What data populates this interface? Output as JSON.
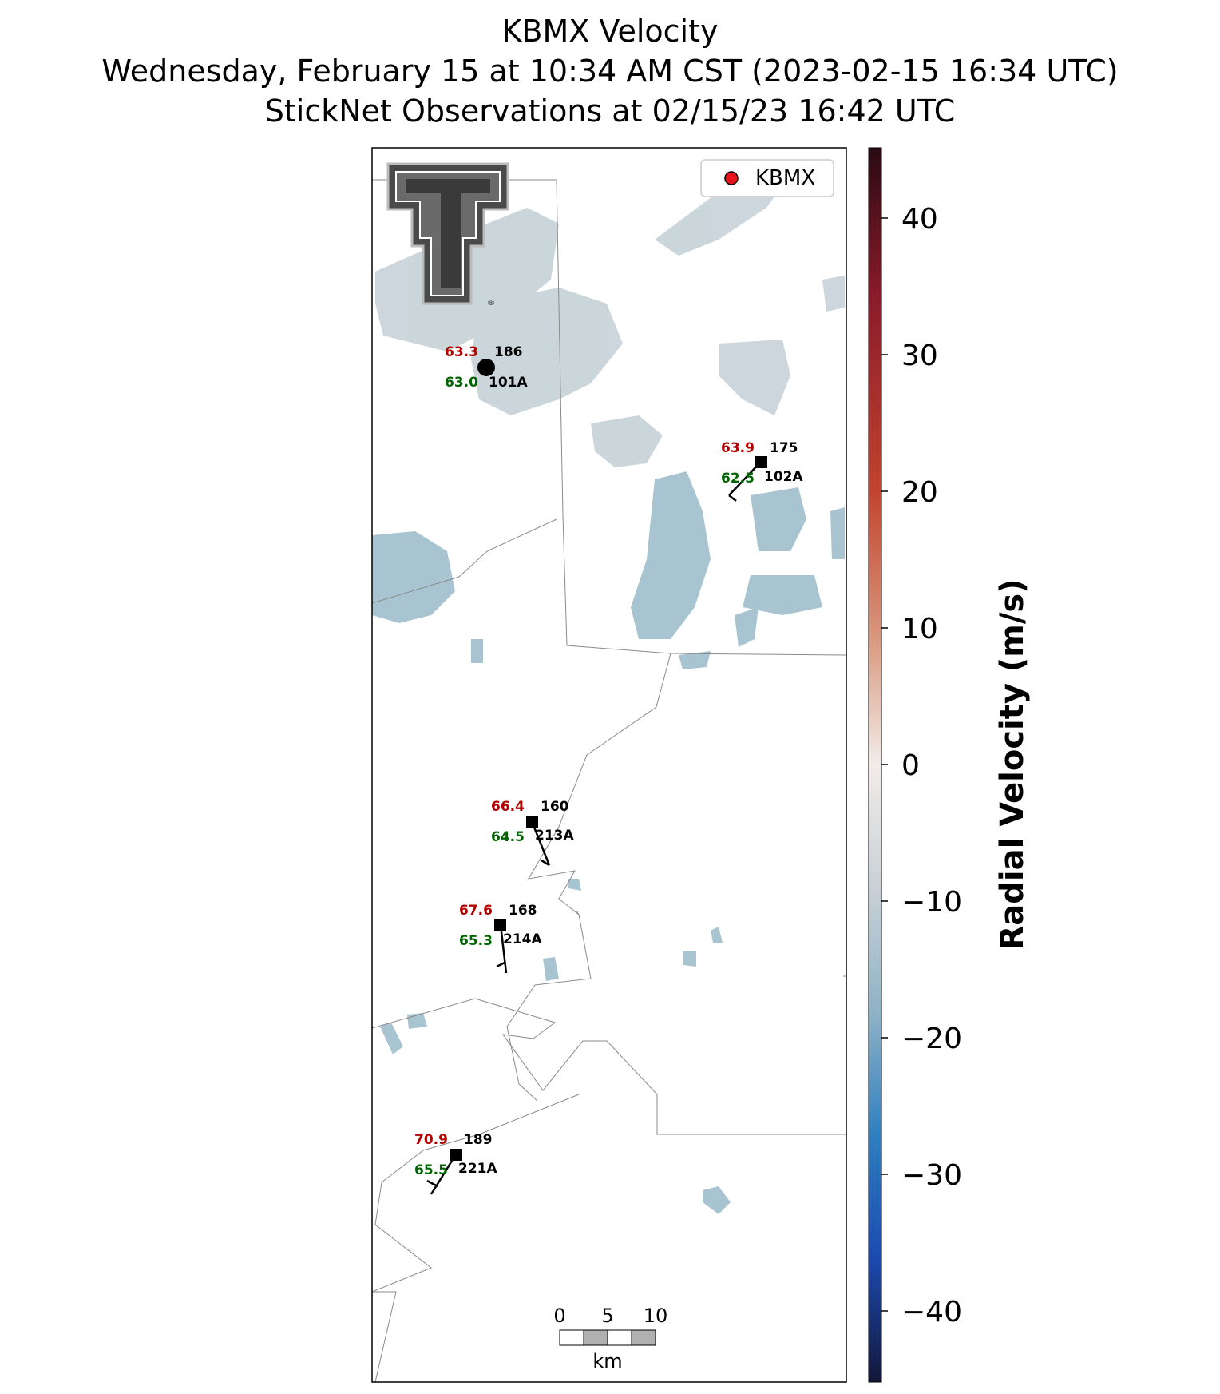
{
  "title": {
    "line1": "KBMX Velocity",
    "line2": "Wednesday, February 15 at 10:34 AM CST (2023-02-15 16:34 UTC)",
    "line3": "StickNet Observations at 02/15/23 16:42 UTC"
  },
  "legend": {
    "label": "KBMX",
    "marker_color": "#e8141c"
  },
  "colorbar": {
    "label": "Radial Velocity (m/s)",
    "range": [
      -45,
      45
    ],
    "ticks": [
      "40",
      "30",
      "20",
      "10",
      "0",
      "−10",
      "−20",
      "−30",
      "−40"
    ],
    "colors": [
      "#2a0a12",
      "#8a1a2a",
      "#c4452e",
      "#d99a80",
      "#f2ece8",
      "#c8d0d6",
      "#8fb3c6",
      "#2f7fc0",
      "#1a4ab0",
      "#14173a"
    ]
  },
  "stations": [
    {
      "id": "101A",
      "temp": "63.3",
      "dew": "63.0",
      "dir": "186"
    },
    {
      "id": "102A",
      "temp": "63.9",
      "dew": "62.5",
      "dir": "175"
    },
    {
      "id": "213A",
      "temp": "66.4",
      "dew": "64.5",
      "dir": "160"
    },
    {
      "id": "214A",
      "temp": "67.6",
      "dew": "65.3",
      "dir": "168"
    },
    {
      "id": "221A",
      "temp": "70.9",
      "dew": "65.5",
      "dir": "189"
    }
  ],
  "scalebar": {
    "ticks": [
      "0",
      "5",
      "10"
    ],
    "unit": "km"
  },
  "colors": {
    "temp": "#b00000",
    "dew": "#006400",
    "echo": "#a9c4d1"
  },
  "logo": "texas-tech-double-t-logo"
}
